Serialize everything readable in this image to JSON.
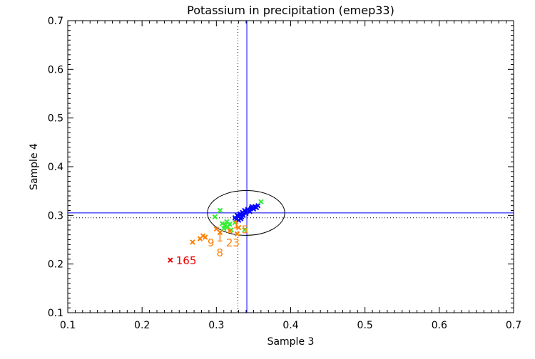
{
  "chart_data": {
    "type": "scatter",
    "title": "Potassium in precipitation (emep33)",
    "xlabel": "Sample 3",
    "ylabel": "Sample 4",
    "xlim": [
      0.1,
      0.7
    ],
    "ylim": [
      0.1,
      0.7
    ],
    "xticks": [
      "0.1",
      "0.2",
      "0.3",
      "0.4",
      "0.5",
      "0.6",
      "0.7"
    ],
    "yticks": [
      "0.1",
      "0.2",
      "0.3",
      "0.4",
      "0.5",
      "0.6",
      "0.7"
    ],
    "grid": false,
    "ref_lines": {
      "vertical_solid": 0.341,
      "horizontal_solid": 0.305,
      "vertical_dotted": 0.329,
      "horizontal_dotted": 0.295,
      "solid_color": "#0000ff",
      "dotted_color": "#000000"
    },
    "ellipse": {
      "center": [
        0.34,
        0.305
      ],
      "semi_x": 0.052,
      "semi_y": 0.046,
      "color": "#000000"
    },
    "series": [
      {
        "color": "#0000ff",
        "marker": "x",
        "points": [
          [
            0.325,
            0.295
          ],
          [
            0.328,
            0.3
          ],
          [
            0.33,
            0.298
          ],
          [
            0.332,
            0.303
          ],
          [
            0.333,
            0.293
          ],
          [
            0.335,
            0.306
          ],
          [
            0.336,
            0.3
          ],
          [
            0.338,
            0.31
          ],
          [
            0.34,
            0.304
          ],
          [
            0.342,
            0.312
          ],
          [
            0.345,
            0.308
          ],
          [
            0.347,
            0.315
          ],
          [
            0.35,
            0.313
          ],
          [
            0.352,
            0.318
          ],
          [
            0.354,
            0.316
          ],
          [
            0.356,
            0.32
          ],
          [
            0.348,
            0.318
          ],
          [
            0.33,
            0.29
          ],
          [
            0.327,
            0.292
          ],
          [
            0.334,
            0.297
          ]
        ]
      },
      {
        "color": "#33ee33",
        "marker": "x",
        "points": [
          [
            0.36,
            0.328
          ],
          [
            0.305,
            0.31
          ],
          [
            0.298,
            0.297
          ],
          [
            0.308,
            0.283
          ],
          [
            0.312,
            0.28
          ],
          [
            0.315,
            0.276
          ],
          [
            0.318,
            0.282
          ],
          [
            0.31,
            0.273
          ],
          [
            0.32,
            0.27
          ],
          [
            0.338,
            0.27
          ],
          [
            0.325,
            0.285
          ],
          [
            0.314,
            0.287
          ]
        ]
      },
      {
        "color": "#ff7f00",
        "marker": "x",
        "points": [
          [
            0.268,
            0.245
          ],
          [
            0.278,
            0.252
          ],
          [
            0.282,
            0.258
          ],
          [
            0.285,
            0.255
          ],
          [
            0.3,
            0.272
          ],
          [
            0.305,
            0.265
          ],
          [
            0.318,
            0.268
          ],
          [
            0.33,
            0.275
          ],
          [
            0.328,
            0.262
          ]
        ]
      },
      {
        "color": "#ee0000",
        "marker": "x",
        "points": [
          [
            0.238,
            0.208
          ]
        ]
      }
    ],
    "annotations": [
      {
        "text": "165",
        "x": 0.238,
        "y": 0.208,
        "color": "#ee0000"
      },
      {
        "text": "1",
        "x": 0.3,
        "y": 0.255,
        "color": "#ff7f00"
      },
      {
        "text": "9",
        "x": 0.288,
        "y": 0.245,
        "color": "#ff7f00"
      },
      {
        "text": "8",
        "x": 0.3,
        "y": 0.245,
        "color": "#ff7f00"
      },
      {
        "text": "23",
        "x": 0.313,
        "y": 0.245,
        "color": "#ff7f00"
      },
      {
        "text": "1",
        "x": 0.322,
        "y": 0.262,
        "color": "#ff7f00"
      },
      {
        "text": "5",
        "x": 0.334,
        "y": 0.272,
        "color": "#ff7f00"
      }
    ]
  }
}
